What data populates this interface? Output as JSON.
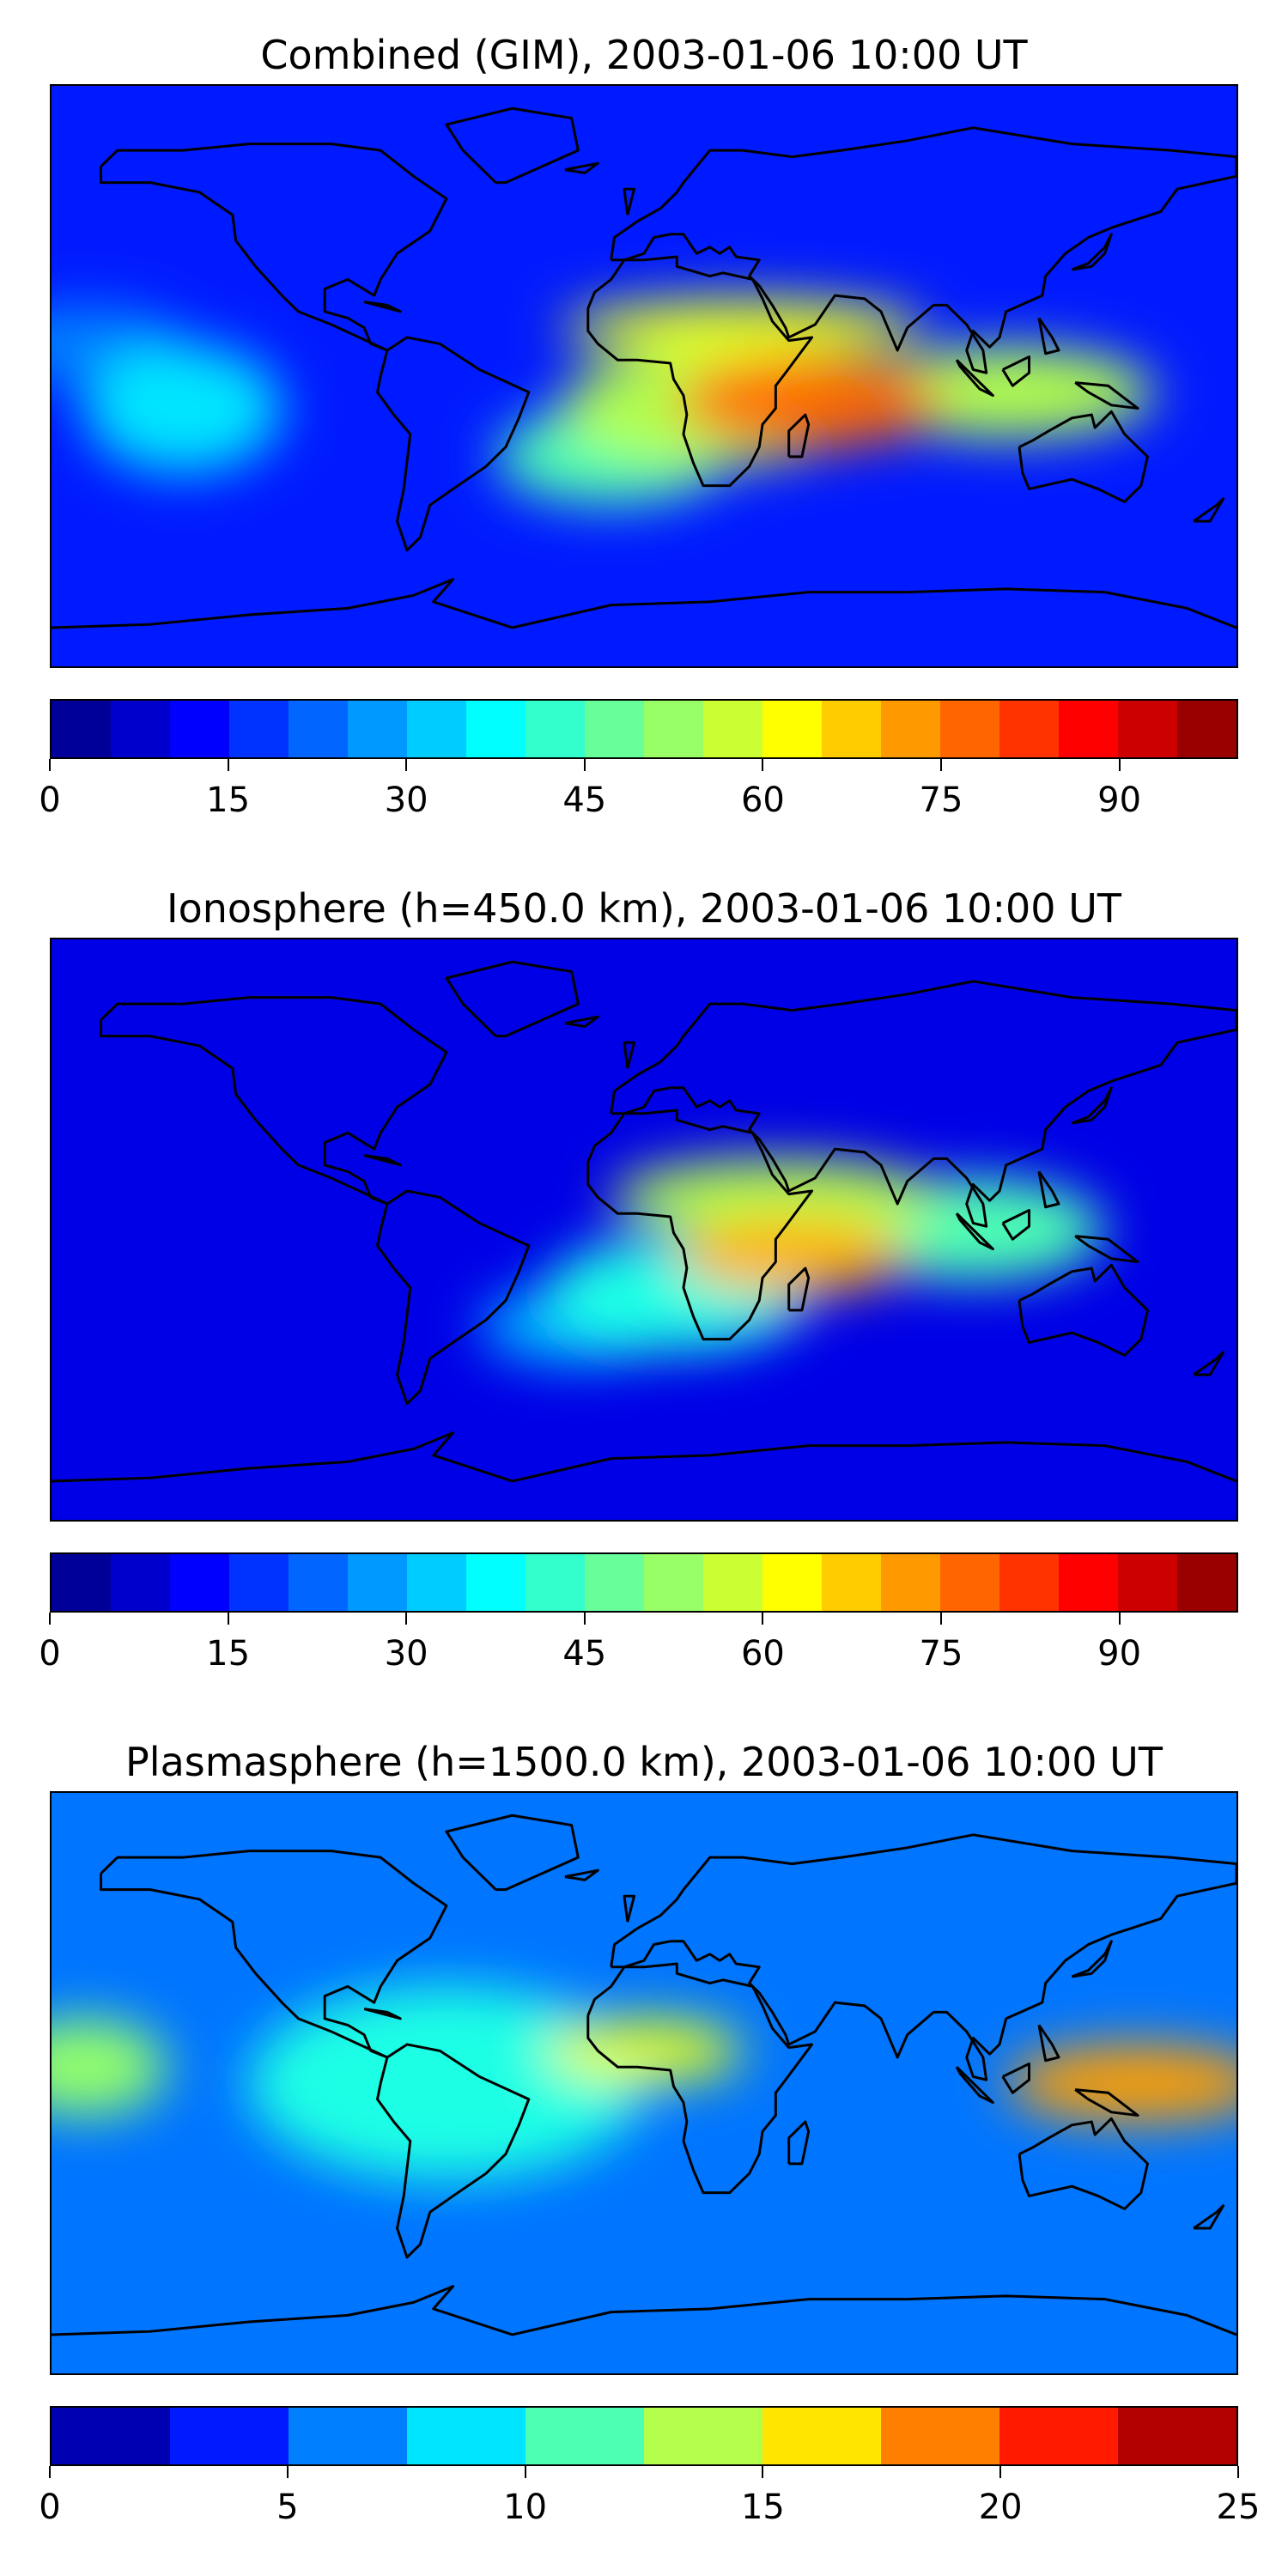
{
  "chart_data": [
    {
      "type": "heatmap",
      "title": "Combined (GIM), 2003-01-06 10:00 UT",
      "colorbar": {
        "min": 0,
        "max": 100,
        "step": 5,
        "tick_labels": [
          "0",
          "15",
          "30",
          "45",
          "60",
          "75",
          "90"
        ],
        "tick_values": [
          0,
          15,
          30,
          45,
          60,
          75,
          90
        ]
      },
      "map": "world coastlines",
      "features": [
        {
          "lon": 50,
          "lat": -8,
          "value": 77,
          "rx": 40,
          "ry": 14
        },
        {
          "lon": 30,
          "lat": 15,
          "value": 60,
          "rx": 55,
          "ry": 9
        },
        {
          "lon": 110,
          "lat": -5,
          "value": 55,
          "rx": 45,
          "ry": 14
        },
        {
          "lon": 20,
          "lat": -10,
          "value": 55,
          "rx": 45,
          "ry": 18
        },
        {
          "lon": -10,
          "lat": -25,
          "value": 45,
          "rx": 35,
          "ry": 15
        },
        {
          "lon": -140,
          "lat": -10,
          "value": 35,
          "rx": 30,
          "ry": 20
        },
        {
          "lon": -170,
          "lat": 10,
          "value": 25,
          "rx": 30,
          "ry": 12
        }
      ],
      "background_value": 15
    },
    {
      "type": "heatmap",
      "title": "Ionosphere  (h=450.0 km), 2003-01-06 10:00 UT",
      "colorbar": {
        "min": 0,
        "max": 100,
        "step": 5,
        "tick_labels": [
          "0",
          "15",
          "30",
          "45",
          "60",
          "75",
          "90"
        ],
        "tick_values": [
          0,
          15,
          30,
          45,
          60,
          75,
          90
        ]
      },
      "map": "world coastlines",
      "features": [
        {
          "lon": 45,
          "lat": -8,
          "value": 70,
          "rx": 35,
          "ry": 12
        },
        {
          "lon": 40,
          "lat": 10,
          "value": 55,
          "rx": 50,
          "ry": 12
        },
        {
          "lon": 100,
          "lat": 0,
          "value": 45,
          "rx": 40,
          "ry": 16
        },
        {
          "lon": 10,
          "lat": -20,
          "value": 40,
          "rx": 40,
          "ry": 18
        },
        {
          "lon": -20,
          "lat": -30,
          "value": 30,
          "rx": 30,
          "ry": 12
        }
      ],
      "background_value": 10
    },
    {
      "type": "heatmap",
      "title": "Plasmasphere (h=1500.0 km), 2003-01-06 10:00 UT",
      "colorbar": {
        "min": 0,
        "max": 25,
        "step": 2.5,
        "tick_labels": [
          "0",
          "5",
          "10",
          "15",
          "20",
          "25"
        ],
        "tick_values": [
          0,
          5,
          10,
          15,
          20,
          25
        ]
      },
      "map": "world coastlines",
      "features": [
        {
          "lon": 150,
          "lat": 0,
          "value": 18,
          "rx": 40,
          "ry": 12
        },
        {
          "lon": 0,
          "lat": 10,
          "value": 15,
          "rx": 30,
          "ry": 10
        },
        {
          "lon": -170,
          "lat": 5,
          "value": 13,
          "rx": 25,
          "ry": 15
        },
        {
          "lon": -60,
          "lat": 0,
          "value": 10,
          "rx": 60,
          "ry": 30
        }
      ],
      "background_value": 6
    }
  ]
}
